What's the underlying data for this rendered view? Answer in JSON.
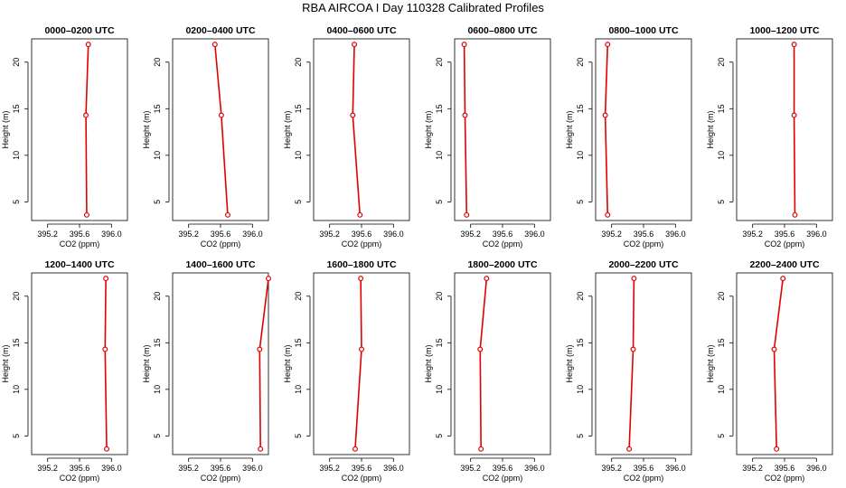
{
  "title": "RBA AIRCOA I  Day 110328  Calibrated Profiles",
  "colors": {
    "profile": "#e00000",
    "axis": "#000000",
    "background": "#ffffff"
  },
  "chart_data": {
    "type": "line",
    "orientation": "vertical-profile",
    "xlabel": "CO2 (ppm)",
    "ylabel": "Height (m)",
    "xlim": [
      395.0,
      396.2
    ],
    "ylim": [
      3.0,
      22.5
    ],
    "xticks": [
      395.2,
      395.6,
      396.0
    ],
    "xtick_labels": [
      "395.2",
      "395.6",
      "396.0"
    ],
    "yticks": [
      5,
      10,
      15,
      20
    ],
    "ytick_labels": [
      "5",
      "10",
      "15",
      "20"
    ],
    "grid": false,
    "legend": "none",
    "heights": [
      3.6,
      14.3,
      21.9
    ],
    "panels": [
      {
        "title": "0000–0200 UTC",
        "co2": [
          395.69,
          395.68,
          395.71
        ]
      },
      {
        "title": "0200–0400 UTC",
        "co2": [
          395.69,
          395.61,
          395.53
        ]
      },
      {
        "title": "0400–0600 UTC",
        "co2": [
          395.58,
          395.49,
          395.51
        ]
      },
      {
        "title": "0600–0800 UTC",
        "co2": [
          395.15,
          395.13,
          395.12
        ]
      },
      {
        "title": "0800–1000 UTC",
        "co2": [
          395.15,
          395.12,
          395.15
        ]
      },
      {
        "title": "1000–1200 UTC",
        "co2": [
          395.73,
          395.72,
          395.72
        ]
      },
      {
        "title": "1200–1400 UTC",
        "co2": [
          395.94,
          395.92,
          395.93
        ]
      },
      {
        "title": "1400–1600 UTC",
        "co2": [
          396.1,
          396.09,
          396.2
        ]
      },
      {
        "title": "1600–1800 UTC",
        "co2": [
          395.52,
          395.6,
          395.59
        ]
      },
      {
        "title": "1800–2000 UTC",
        "co2": [
          395.33,
          395.32,
          395.4
        ]
      },
      {
        "title": "2000–2200 UTC",
        "co2": [
          395.42,
          395.47,
          395.48
        ]
      },
      {
        "title": "2200–2400 UTC",
        "co2": [
          395.5,
          395.47,
          395.58
        ]
      }
    ]
  }
}
